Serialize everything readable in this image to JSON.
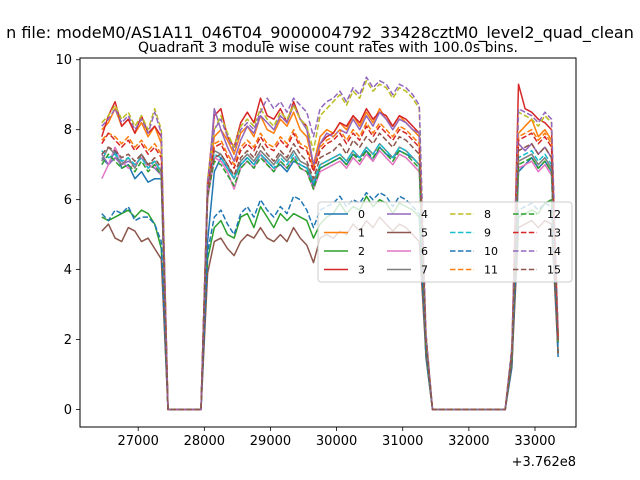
{
  "suptitle": "n file: modeM0/AS1A11_046T04_9000004792_33428cztM0_level2_quad_clean",
  "chart_data": {
    "type": "line",
    "title": "Quadrant 3 module wise count rates with 100.0s bins.",
    "xlabel": "",
    "ylabel": "",
    "x_offset_label": "+3.762e8",
    "x_ticks": [
      27000,
      28000,
      29000,
      30000,
      31000,
      32000,
      33000
    ],
    "y_ticks": [
      0,
      2,
      4,
      6,
      8,
      10
    ],
    "xlim": [
      26120,
      33620
    ],
    "ylim": [
      -0.5,
      10.05
    ],
    "grid": false,
    "legend_position": "center-right",
    "x": [
      26450,
      26550,
      26650,
      26750,
      26850,
      26950,
      27050,
      27150,
      27250,
      27350,
      27450,
      27550,
      27650,
      27750,
      27850,
      27950,
      28050,
      28150,
      28250,
      28350,
      28450,
      28550,
      28650,
      28750,
      28850,
      28950,
      29050,
      29150,
      29250,
      29350,
      29450,
      29550,
      29650,
      29750,
      29850,
      29950,
      30050,
      30150,
      30250,
      30350,
      30450,
      30550,
      30650,
      30750,
      30850,
      30950,
      31050,
      31150,
      31250,
      31350,
      31450,
      31550,
      31650,
      31750,
      31850,
      31950,
      32050,
      32150,
      32250,
      32350,
      32450,
      32550,
      32650,
      32750,
      32850,
      32950,
      33050,
      33150,
      33250,
      33350
    ],
    "series": [
      {
        "name": "0",
        "color": "#1f77b4",
        "dash": false,
        "values": [
          7.2,
          7.0,
          7.4,
          6.9,
          7.0,
          6.6,
          6.8,
          6.5,
          6.6,
          6.6,
          0,
          0,
          0,
          0,
          0,
          0,
          4.8,
          6.8,
          7.2,
          6.9,
          6.6,
          7.0,
          7.2,
          7.0,
          7.3,
          7.1,
          6.9,
          7.0,
          6.8,
          7.1,
          7.0,
          6.9,
          6.4,
          6.9,
          7.0,
          7.1,
          7.2,
          7.0,
          7.3,
          7.2,
          7.4,
          7.1,
          7.5,
          7.3,
          7.2,
          7.4,
          7.3,
          7.2,
          7.0,
          1.5,
          0,
          0,
          0,
          0,
          0,
          0,
          0,
          0,
          0,
          0,
          0,
          0,
          1.2,
          6.8,
          7.0,
          7.2,
          6.9,
          7.1,
          6.8,
          1.5
        ]
      },
      {
        "name": "1",
        "color": "#ff7f0e",
        "dash": false,
        "values": [
          8.0,
          8.2,
          8.6,
          8.1,
          8.3,
          7.9,
          8.2,
          7.8,
          8.1,
          7.6,
          0,
          0,
          0,
          0,
          0,
          0,
          6.4,
          7.8,
          8.0,
          7.7,
          7.3,
          7.9,
          8.1,
          7.8,
          8.4,
          8.0,
          7.9,
          8.3,
          8.1,
          8.5,
          8.0,
          7.8,
          7.0,
          7.8,
          8.0,
          7.9,
          8.2,
          8.0,
          8.4,
          8.1,
          8.5,
          8.2,
          8.6,
          8.3,
          8.1,
          8.4,
          8.2,
          8.0,
          7.8,
          2.0,
          0,
          0,
          0,
          0,
          0,
          0,
          0,
          0,
          0,
          0,
          0,
          0,
          1.6,
          7.9,
          8.1,
          8.3,
          7.8,
          8.0,
          7.7,
          2.0
        ]
      },
      {
        "name": "2",
        "color": "#2ca02c",
        "dash": false,
        "values": [
          5.5,
          5.4,
          5.5,
          5.6,
          5.7,
          5.5,
          5.7,
          5.6,
          5.3,
          4.6,
          0,
          0,
          0,
          0,
          0,
          0,
          4.3,
          5.2,
          5.4,
          5.0,
          4.9,
          5.5,
          5.6,
          5.2,
          5.8,
          5.5,
          5.2,
          5.6,
          5.4,
          5.6,
          5.5,
          5.4,
          4.9,
          5.3,
          5.5,
          5.6,
          5.9,
          5.6,
          5.8,
          5.7,
          6.1,
          5.8,
          6.0,
          5.9,
          5.6,
          5.9,
          5.8,
          5.7,
          5.5,
          1.6,
          0,
          0,
          0,
          0,
          0,
          0,
          0,
          0,
          0,
          0,
          0,
          0,
          1.4,
          5.5,
          5.6,
          5.7,
          5.6,
          5.9,
          6.0,
          1.6
        ]
      },
      {
        "name": "3",
        "color": "#d62728",
        "dash": false,
        "values": [
          7.8,
          8.4,
          8.8,
          8.1,
          8.3,
          7.9,
          8.4,
          7.9,
          8.1,
          7.8,
          0,
          0,
          0,
          0,
          0,
          0,
          6.5,
          8.4,
          8.6,
          7.8,
          7.5,
          8.2,
          8.5,
          8.2,
          8.9,
          8.4,
          8.3,
          8.6,
          8.2,
          8.8,
          8.3,
          8.1,
          6.9,
          7.6,
          7.8,
          7.9,
          8.2,
          8.1,
          8.4,
          8.2,
          8.6,
          8.3,
          8.5,
          8.4,
          8.1,
          8.4,
          8.3,
          8.1,
          7.9,
          1.8,
          0,
          0,
          0,
          0,
          0,
          0,
          0,
          0,
          0,
          0,
          0,
          0,
          1.7,
          9.3,
          8.6,
          8.5,
          8.3,
          8.2,
          8.0,
          1.9
        ]
      },
      {
        "name": "4",
        "color": "#9467bd",
        "dash": false,
        "values": [
          7.3,
          7.0,
          7.2,
          7.0,
          7.1,
          7.0,
          7.2,
          7.0,
          6.9,
          6.7,
          0,
          0,
          0,
          0,
          0,
          0,
          6.2,
          8.6,
          8.0,
          7.5,
          7.1,
          7.7,
          8.1,
          7.9,
          8.4,
          8.2,
          8.0,
          8.4,
          8.2,
          8.7,
          8.3,
          8.0,
          7.0,
          7.6,
          7.9,
          7.8,
          8.0,
          7.9,
          8.3,
          8.0,
          8.4,
          8.1,
          8.5,
          8.3,
          8.0,
          8.3,
          8.2,
          8.0,
          7.9,
          2.1,
          0,
          0,
          0,
          0,
          0,
          0,
          0,
          0,
          0,
          0,
          0,
          0,
          1.7,
          7.6,
          7.4,
          7.6,
          7.3,
          7.5,
          7.2,
          2.1
        ]
      },
      {
        "name": "5",
        "color": "#8c564b",
        "dash": false,
        "values": [
          5.1,
          5.3,
          4.9,
          4.8,
          5.2,
          5.1,
          4.8,
          4.9,
          4.6,
          4.3,
          0,
          0,
          0,
          0,
          0,
          0,
          3.9,
          4.8,
          4.9,
          4.6,
          4.4,
          4.8,
          5.0,
          4.9,
          5.2,
          4.9,
          4.8,
          5.0,
          4.8,
          5.2,
          4.9,
          4.7,
          4.2,
          4.9,
          5.0,
          4.9,
          5.1,
          5.0,
          5.3,
          5.1,
          5.4,
          5.2,
          5.5,
          5.3,
          5.1,
          5.3,
          5.2,
          5.0,
          4.8,
          1.6,
          0,
          0,
          0,
          0,
          0,
          0,
          0,
          0,
          0,
          0,
          0,
          0,
          1.3,
          5.2,
          5.3,
          5.4,
          5.2,
          5.4,
          5.3,
          1.6
        ]
      },
      {
        "name": "6",
        "color": "#e377c2",
        "dash": false,
        "values": [
          6.6,
          7.0,
          7.5,
          7.1,
          6.9,
          7.0,
          7.2,
          6.9,
          7.0,
          6.7,
          0,
          0,
          0,
          0,
          0,
          0,
          6.0,
          7.2,
          7.1,
          6.8,
          6.3,
          6.9,
          7.1,
          6.9,
          7.3,
          7.0,
          6.8,
          7.1,
          6.9,
          7.2,
          6.9,
          6.8,
          6.3,
          6.8,
          6.9,
          7.0,
          7.1,
          6.9,
          7.2,
          7.0,
          7.3,
          7.1,
          7.4,
          7.2,
          7.0,
          7.3,
          7.2,
          7.0,
          6.8,
          1.9,
          0,
          0,
          0,
          0,
          0,
          0,
          0,
          0,
          0,
          0,
          0,
          0,
          1.5,
          6.9,
          7.0,
          7.1,
          6.8,
          7.0,
          6.7,
          1.9
        ]
      },
      {
        "name": "7",
        "color": "#7f7f7f",
        "dash": false,
        "values": [
          7.1,
          7.5,
          7.3,
          7.0,
          7.2,
          6.9,
          7.3,
          7.0,
          7.1,
          6.8,
          0,
          0,
          0,
          0,
          0,
          0,
          6.3,
          7.4,
          7.3,
          7.0,
          6.6,
          7.1,
          7.3,
          7.1,
          7.4,
          7.2,
          7.0,
          7.3,
          7.1,
          7.4,
          7.1,
          7.0,
          6.5,
          7.0,
          7.1,
          7.2,
          7.3,
          7.1,
          7.4,
          7.2,
          7.5,
          7.3,
          7.6,
          7.4,
          7.2,
          7.5,
          7.4,
          7.2,
          7.0,
          2.0,
          0,
          0,
          0,
          0,
          0,
          0,
          0,
          0,
          0,
          0,
          0,
          0,
          1.5,
          7.1,
          7.2,
          7.3,
          7.0,
          7.2,
          6.9,
          2.0
        ]
      },
      {
        "name": "8",
        "color": "#bcbd22",
        "dash": true,
        "values": [
          8.2,
          8.4,
          8.7,
          8.3,
          8.5,
          8.1,
          8.4,
          8.0,
          8.6,
          8.0,
          0,
          0,
          0,
          0,
          0,
          0,
          6.6,
          8.0,
          8.4,
          7.9,
          7.5,
          8.1,
          8.3,
          8.1,
          8.6,
          8.3,
          8.1,
          8.5,
          8.3,
          8.7,
          8.3,
          8.1,
          7.4,
          8.4,
          8.6,
          8.8,
          9.0,
          8.7,
          9.1,
          8.9,
          9.4,
          9.1,
          9.3,
          9.2,
          8.9,
          9.2,
          9.1,
          8.9,
          8.6,
          2.2,
          0,
          0,
          0,
          0,
          0,
          0,
          0,
          0,
          0,
          0,
          0,
          0,
          1.8,
          8.5,
          8.4,
          8.3,
          8.1,
          8.4,
          8.2,
          2.2
        ]
      },
      {
        "name": "9",
        "color": "#17becf",
        "dash": true,
        "values": [
          7.4,
          7.2,
          7.3,
          7.1,
          7.2,
          7.0,
          7.2,
          6.9,
          7.1,
          6.8,
          0,
          0,
          0,
          0,
          0,
          0,
          6.4,
          7.3,
          7.2,
          6.9,
          6.6,
          7.0,
          7.2,
          7.0,
          7.3,
          7.1,
          6.9,
          7.2,
          7.0,
          7.3,
          7.0,
          6.9,
          6.5,
          7.0,
          7.1,
          7.2,
          7.3,
          7.1,
          7.4,
          7.2,
          7.5,
          7.3,
          7.6,
          7.4,
          7.2,
          7.5,
          7.4,
          7.2,
          7.0,
          1.9,
          0,
          0,
          0,
          0,
          0,
          0,
          0,
          0,
          0,
          0,
          0,
          0,
          1.6,
          7.2,
          7.3,
          7.4,
          7.1,
          7.3,
          7.0,
          1.9
        ]
      },
      {
        "name": "10",
        "color": "#1f77b4",
        "dash": true,
        "values": [
          5.6,
          5.4,
          5.7,
          5.6,
          5.8,
          5.4,
          5.5,
          5.5,
          5.3,
          4.8,
          0,
          0,
          0,
          0,
          0,
          0,
          4.5,
          5.5,
          5.7,
          5.3,
          5.0,
          5.6,
          5.8,
          5.5,
          6.0,
          5.7,
          5.5,
          5.8,
          5.6,
          6.1,
          6.0,
          5.7,
          5.2,
          5.7,
          5.8,
          5.9,
          6.1,
          5.8,
          6.0,
          5.9,
          6.2,
          6.0,
          6.2,
          6.1,
          5.8,
          6.1,
          6.0,
          5.8,
          5.6,
          1.7,
          0,
          0,
          0,
          0,
          0,
          0,
          0,
          0,
          0,
          0,
          0,
          0,
          1.4,
          5.7,
          5.8,
          5.9,
          5.7,
          5.9,
          5.8,
          1.7
        ]
      },
      {
        "name": "11",
        "color": "#ff7f0e",
        "dash": true,
        "values": [
          7.7,
          7.9,
          7.8,
          7.6,
          7.8,
          7.5,
          7.7,
          7.4,
          7.6,
          7.3,
          0,
          0,
          0,
          0,
          0,
          0,
          6.5,
          7.6,
          7.7,
          7.3,
          7.0,
          7.5,
          7.7,
          7.5,
          7.9,
          7.6,
          7.5,
          7.8,
          7.6,
          8.0,
          7.6,
          7.5,
          6.9,
          7.5,
          7.7,
          7.8,
          8.0,
          7.7,
          8.0,
          7.8,
          8.2,
          7.9,
          8.2,
          8.0,
          7.8,
          8.1,
          8.0,
          7.8,
          7.6,
          2.1,
          0,
          0,
          0,
          0,
          0,
          0,
          0,
          0,
          0,
          0,
          0,
          0,
          1.7,
          7.8,
          7.9,
          8.0,
          7.7,
          7.9,
          7.6,
          2.1
        ]
      },
      {
        "name": "12",
        "color": "#2ca02c",
        "dash": true,
        "values": [
          7.0,
          7.3,
          7.1,
          6.9,
          7.0,
          6.8,
          7.1,
          6.8,
          7.0,
          6.7,
          0,
          0,
          0,
          0,
          0,
          0,
          6.1,
          7.1,
          7.0,
          6.7,
          6.4,
          6.9,
          7.1,
          6.9,
          7.2,
          7.0,
          6.8,
          7.1,
          6.9,
          7.2,
          6.9,
          6.8,
          6.3,
          6.9,
          7.0,
          7.1,
          7.2,
          7.0,
          7.3,
          7.1,
          7.4,
          7.2,
          7.5,
          7.3,
          7.1,
          7.4,
          7.3,
          7.1,
          6.9,
          1.9,
          0,
          0,
          0,
          0,
          0,
          0,
          0,
          0,
          0,
          0,
          0,
          0,
          1.5,
          7.0,
          7.1,
          7.2,
          6.9,
          7.1,
          6.8,
          1.9
        ]
      },
      {
        "name": "13",
        "color": "#d62728",
        "dash": true,
        "values": [
          7.6,
          7.9,
          7.7,
          7.5,
          7.7,
          7.4,
          7.6,
          7.3,
          7.5,
          7.2,
          0,
          0,
          0,
          0,
          0,
          0,
          6.4,
          7.5,
          7.6,
          7.2,
          6.9,
          7.4,
          7.6,
          7.4,
          7.8,
          7.5,
          7.4,
          7.7,
          7.5,
          7.9,
          7.5,
          7.4,
          6.8,
          7.4,
          7.6,
          7.7,
          7.9,
          7.6,
          7.9,
          7.7,
          8.1,
          7.8,
          8.1,
          7.9,
          7.7,
          8.0,
          7.9,
          7.7,
          7.5,
          2.0,
          0,
          0,
          0,
          0,
          0,
          0,
          0,
          0,
          0,
          0,
          0,
          0,
          1.6,
          7.7,
          7.8,
          7.9,
          7.6,
          7.8,
          7.5,
          2.0
        ]
      },
      {
        "name": "14",
        "color": "#9467bd",
        "dash": true,
        "values": [
          8.1,
          8.3,
          8.6,
          8.2,
          8.4,
          8.0,
          8.3,
          7.9,
          8.5,
          7.9,
          0,
          0,
          0,
          0,
          0,
          0,
          6.5,
          8.0,
          8.3,
          7.8,
          7.4,
          8.0,
          8.2,
          8.0,
          8.5,
          8.9,
          8.6,
          8.8,
          8.5,
          8.9,
          8.7,
          8.5,
          7.8,
          8.6,
          8.8,
          8.9,
          9.1,
          8.8,
          9.2,
          9.0,
          9.5,
          9.2,
          9.4,
          9.3,
          9.0,
          9.3,
          9.2,
          9.0,
          8.7,
          2.2,
          0,
          0,
          0,
          0,
          0,
          0,
          0,
          0,
          0,
          0,
          0,
          0,
          1.8,
          8.6,
          8.5,
          8.4,
          8.2,
          8.5,
          8.3,
          2.2
        ]
      },
      {
        "name": "15",
        "color": "#8c564b",
        "dash": true,
        "values": [
          7.3,
          7.5,
          7.4,
          7.2,
          7.3,
          7.1,
          7.3,
          7.0,
          7.2,
          6.9,
          0,
          0,
          0,
          0,
          0,
          0,
          6.2,
          7.2,
          7.3,
          7.0,
          6.7,
          7.2,
          7.4,
          7.2,
          7.6,
          7.3,
          7.1,
          7.4,
          7.2,
          7.6,
          7.3,
          7.1,
          6.6,
          7.2,
          7.3,
          7.4,
          7.6,
          7.3,
          7.7,
          7.5,
          7.8,
          7.6,
          7.9,
          7.7,
          7.5,
          7.8,
          7.7,
          7.5,
          7.3,
          2.0,
          0,
          0,
          0,
          0,
          0,
          0,
          0,
          0,
          0,
          0,
          0,
          0,
          1.6,
          7.4,
          7.5,
          7.6,
          7.3,
          7.5,
          7.2,
          2.0
        ]
      }
    ]
  }
}
